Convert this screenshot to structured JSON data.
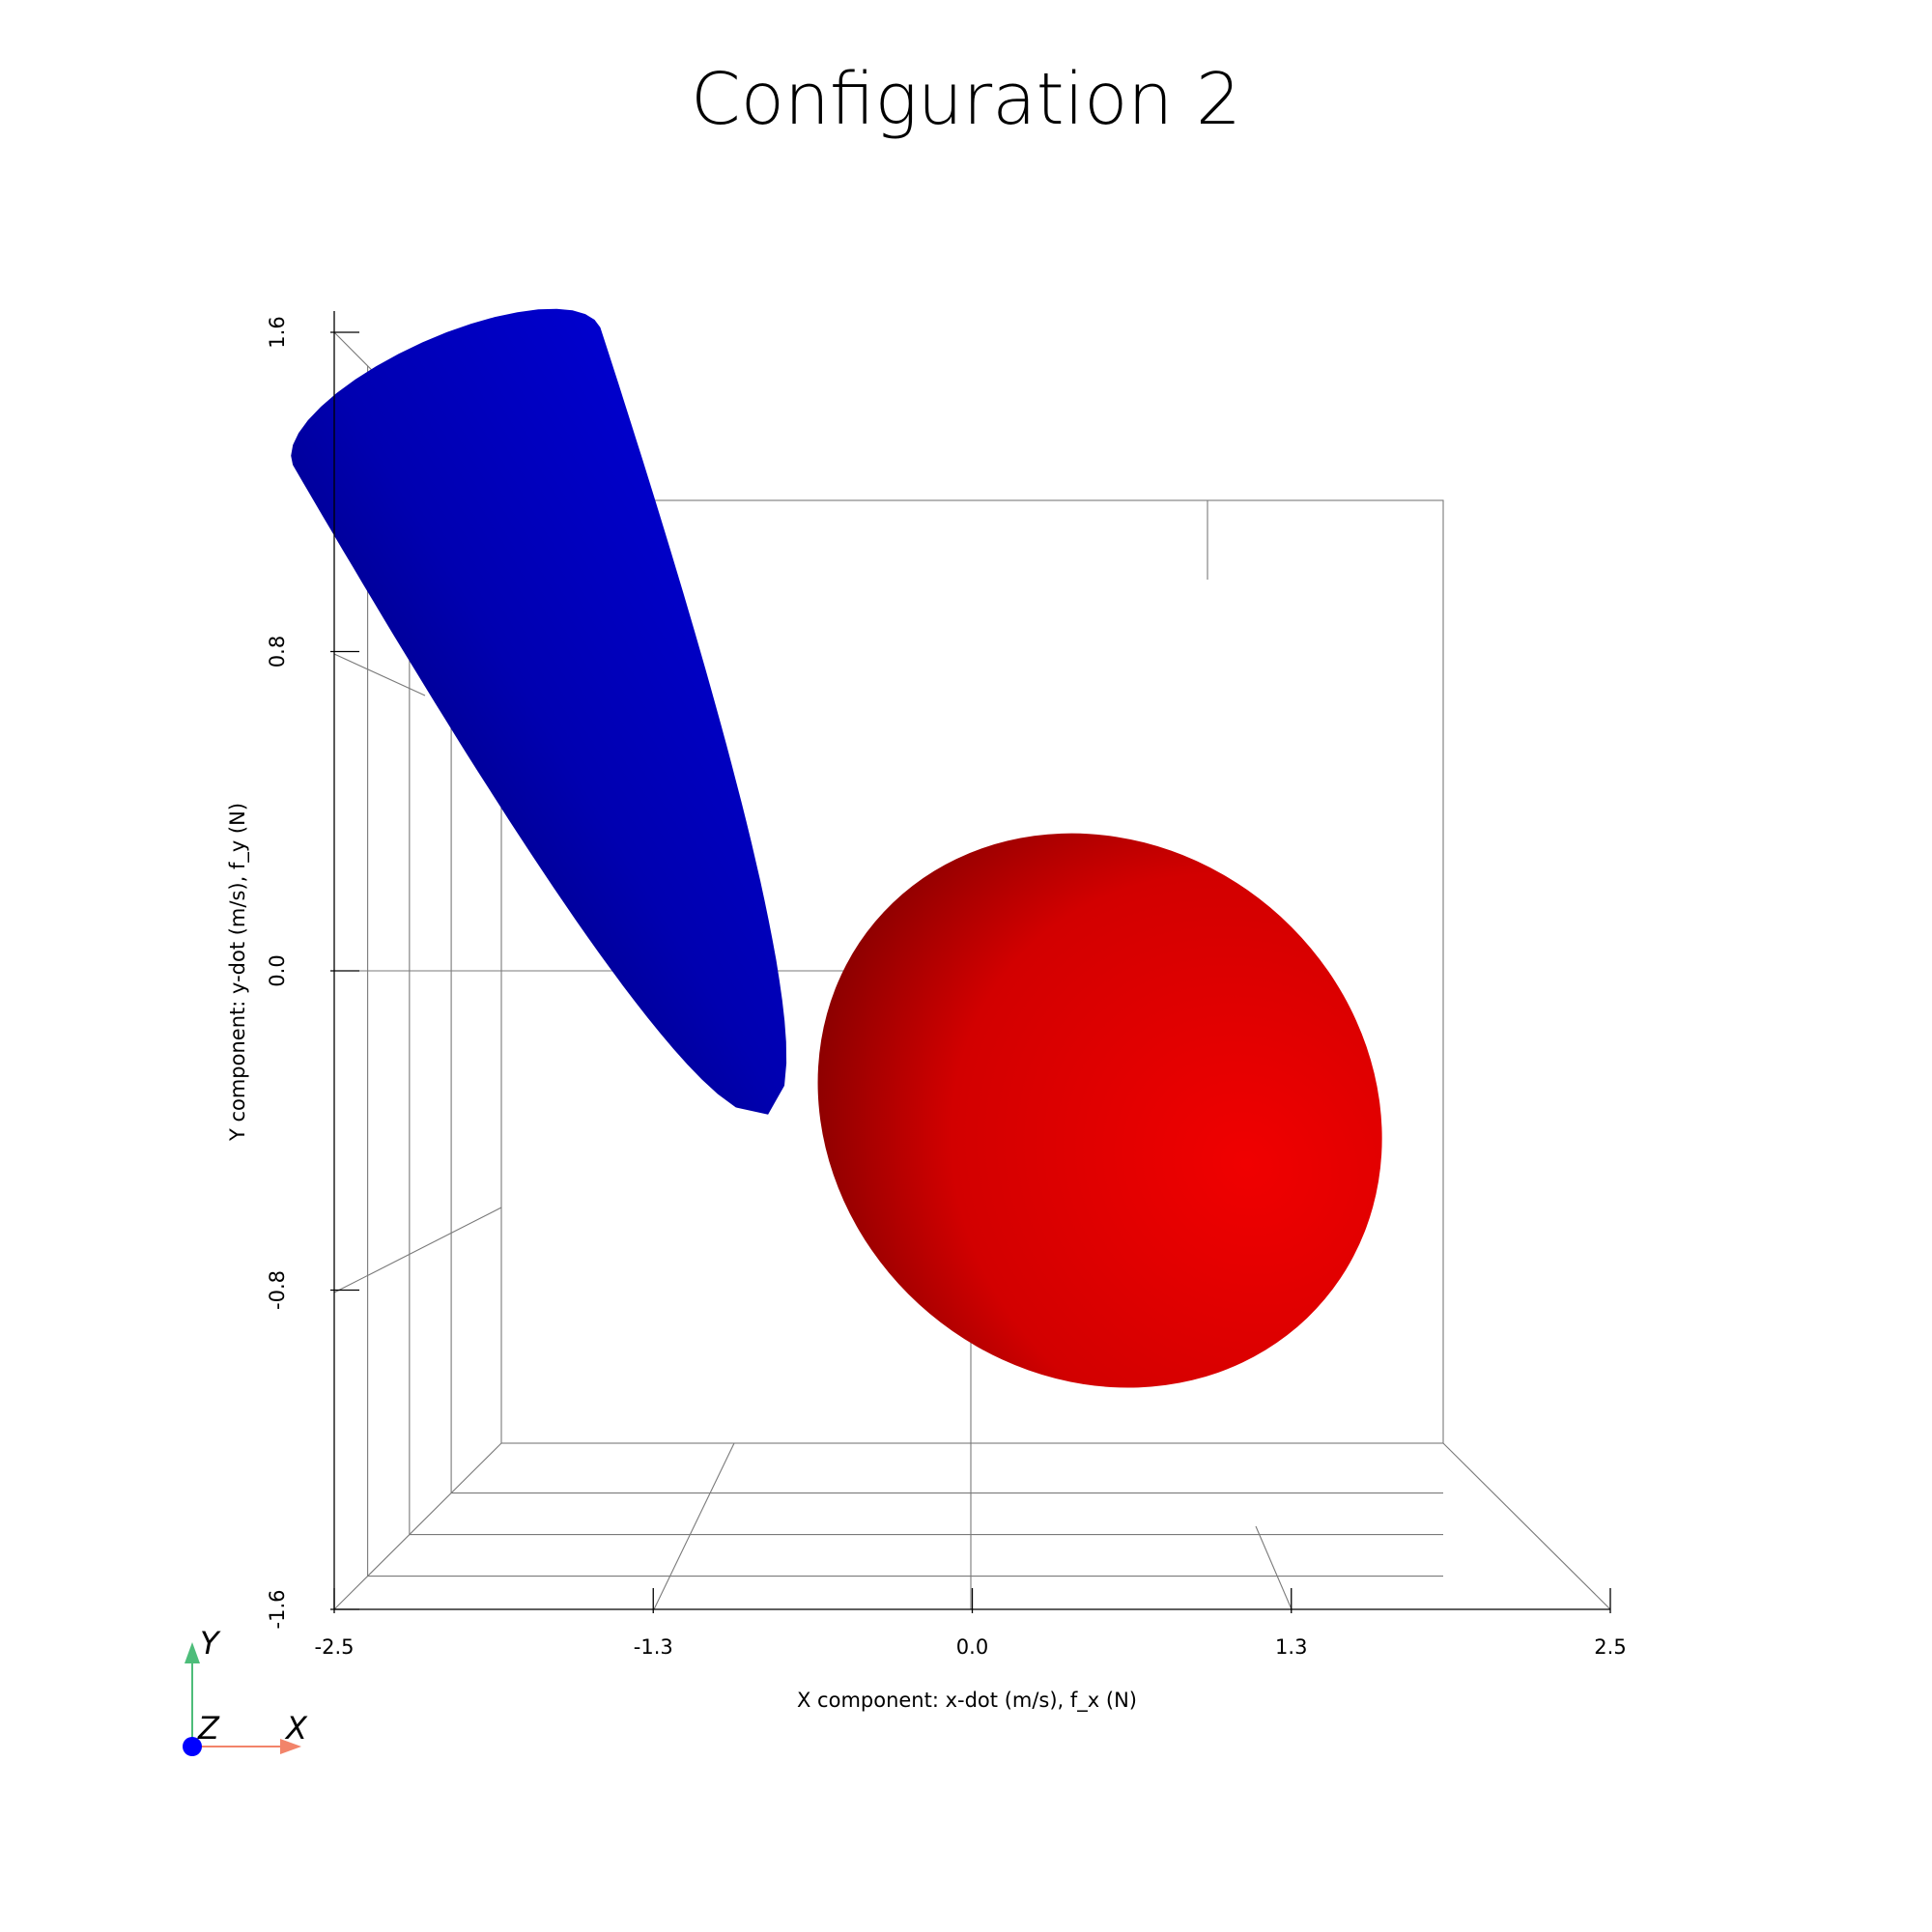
{
  "chart_data": {
    "type": "3d-surface",
    "title": "Configuration 2",
    "xlabel": "X component: x-dot (m/s), f_x (N)",
    "ylabel": "Y component: y-dot (m/s), f_y (N)",
    "xlim": [
      -2.5,
      2.5
    ],
    "ylim": [
      -1.6,
      1.6
    ],
    "x_ticks": [
      "-2.5",
      "-1.3",
      "0.0",
      "1.3",
      "2.5"
    ],
    "y_ticks": [
      "-1.6",
      "-0.8",
      "0.0",
      "0.8",
      "1.6"
    ],
    "grid": true,
    "series": [
      {
        "shape": "ellipsoid",
        "color": "#e60000",
        "center": [
          0.5,
          -0.35
        ],
        "half_width": 2.15,
        "half_height": 1.18,
        "rotation_deg": 50
      },
      {
        "shape": "half-ellipsoid",
        "color": "#0000cc",
        "tip": [
          -0.8,
          -0.36
        ],
        "far_end": [
          -2.06,
          1.44
        ],
        "half_width": 0.66
      }
    ],
    "orientation_axes": {
      "labels": [
        "Y",
        "Z",
        "X"
      ],
      "colors": {
        "x": "#f2846a",
        "y": "#4dbd7a",
        "z": "#0000ff"
      }
    }
  }
}
